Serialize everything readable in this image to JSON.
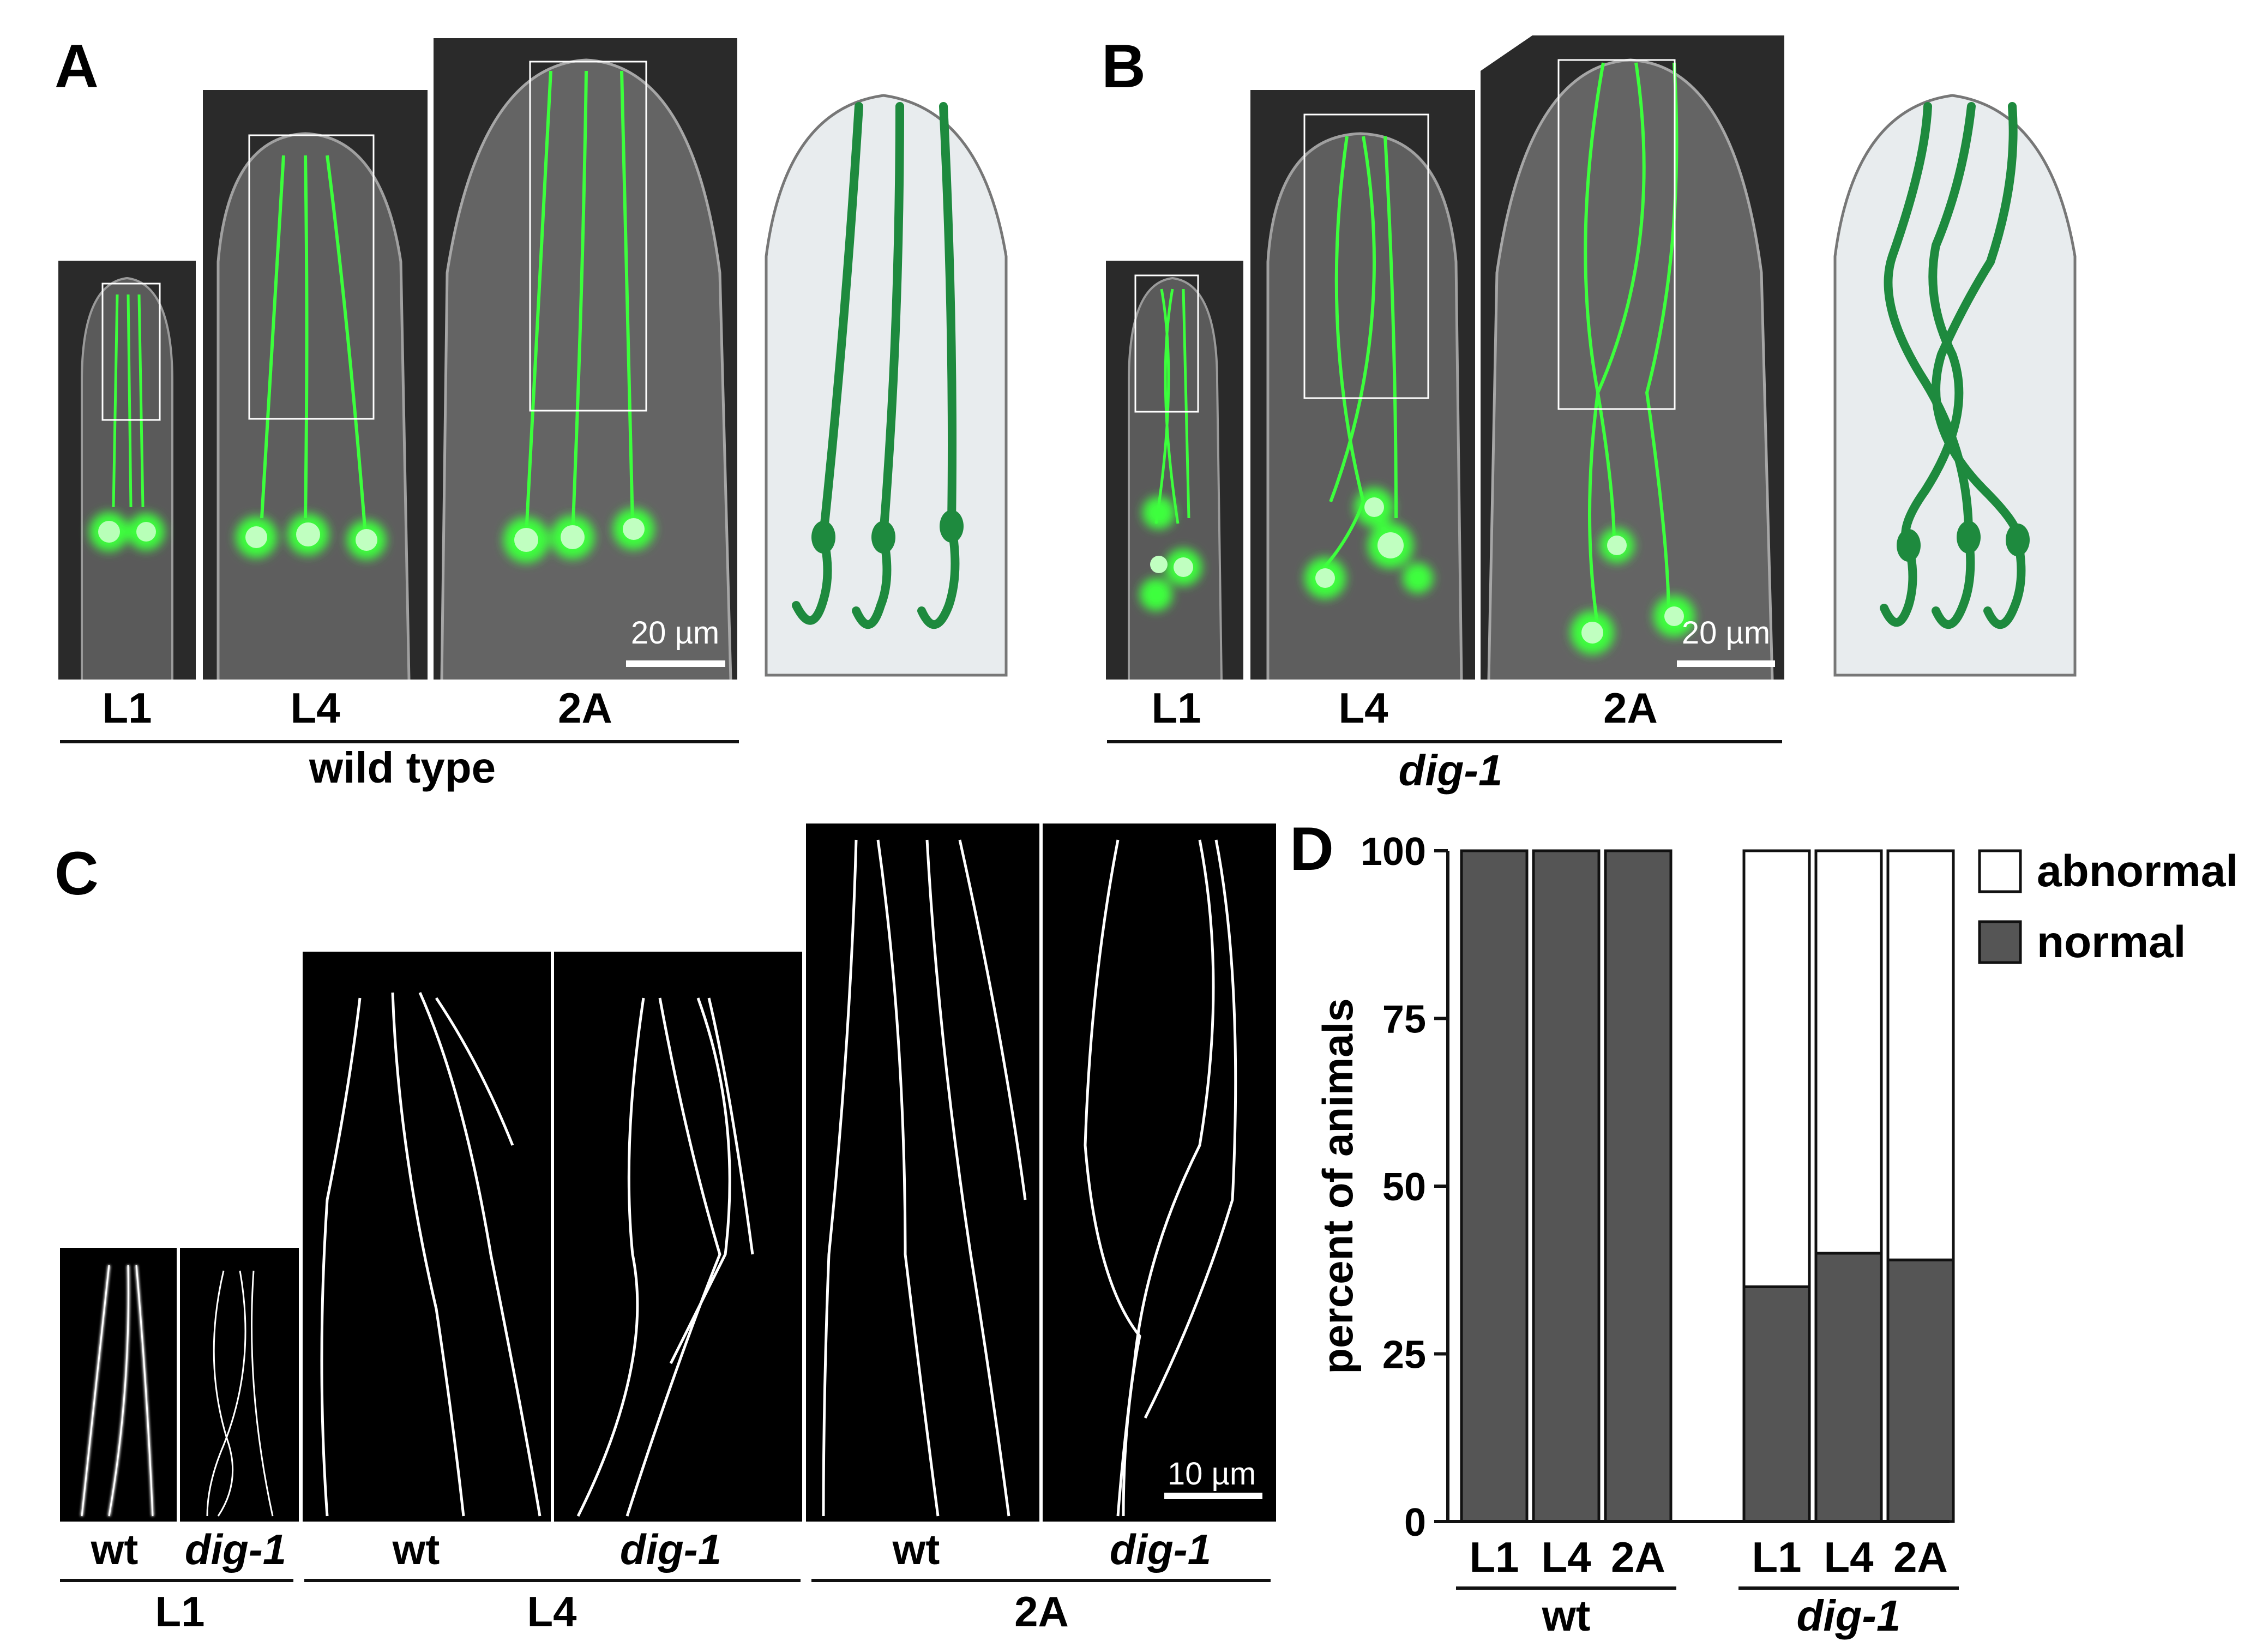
{
  "panels": {
    "A": {
      "letter": "A",
      "stages": [
        "L1",
        "L4",
        "2A"
      ],
      "genotype": "wild type",
      "scale_bar": "20 µm"
    },
    "B": {
      "letter": "B",
      "stages": [
        "L1",
        "L4",
        "2A"
      ],
      "genotype": "dig-1",
      "scale_bar": "20 µm"
    },
    "C": {
      "letter": "C",
      "columns": [
        {
          "stage": "L1",
          "genotypes": [
            "wt",
            "dig-1"
          ]
        },
        {
          "stage": "L4",
          "genotypes": [
            "wt",
            "dig-1"
          ]
        },
        {
          "stage": "2A",
          "genotypes": [
            "wt",
            "dig-1"
          ]
        }
      ],
      "scale_bar": "10 µm"
    },
    "D": {
      "letter": "D"
    }
  },
  "colors": {
    "neuron_green": "#1e8a3e",
    "fluor_green": "#3cff3c",
    "dark_panel": "#2a2a2a",
    "bar_normal": "#555555",
    "bar_abnormal": "#ffffff",
    "schematic_fill": "#e8ecee"
  },
  "chart_data": {
    "type": "bar",
    "stacked": true,
    "groups": [
      {
        "label": "wt",
        "categories": [
          "L1",
          "L4",
          "2A"
        ]
      },
      {
        "label": "dig-1",
        "categories": [
          "L1",
          "L4",
          "2A"
        ]
      }
    ],
    "series": [
      {
        "name": "normal",
        "values": [
          100,
          100,
          100,
          35,
          40,
          39
        ],
        "color": "#555555"
      },
      {
        "name": "abnormal",
        "values": [
          0,
          0,
          0,
          65,
          60,
          61
        ],
        "color": "#ffffff"
      }
    ],
    "ylabel": "percent of animals",
    "yticks": [
      0,
      25,
      50,
      75,
      100
    ],
    "ylim": [
      0,
      100
    ],
    "legend": [
      "abnormal",
      "normal"
    ],
    "legend_position": "top-right",
    "grid": false
  }
}
